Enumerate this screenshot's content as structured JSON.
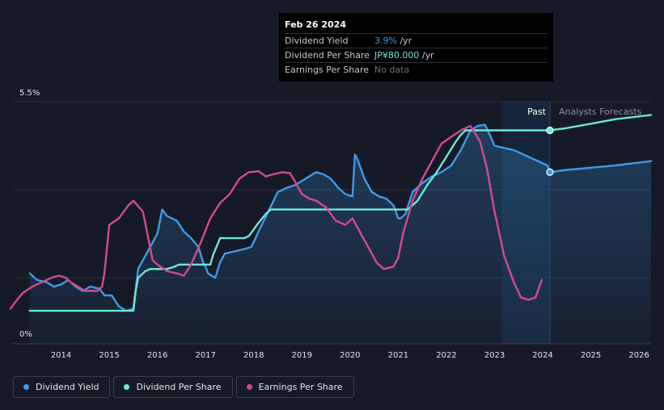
{
  "tooltip": {
    "date": "Feb 26 2024",
    "rows": [
      {
        "label": "Dividend Yield",
        "value": "3.9%",
        "unit": " /yr"
      },
      {
        "label": "Dividend Per Share",
        "value": "JP¥80.000",
        "unit": " /yr"
      },
      {
        "label": "Earnings Per Share",
        "value": "No data",
        "unit": ""
      }
    ]
  },
  "regions": {
    "past_label": "Past",
    "forecast_label": "Analysts Forecasts"
  },
  "legend": [
    {
      "label": "Dividend Yield",
      "color": "#3d9be9"
    },
    {
      "label": "Dividend Per Share",
      "color": "#6ee7d8"
    },
    {
      "label": "Earnings Per Share",
      "color": "#d64a8c"
    }
  ],
  "chart_data": {
    "type": "line",
    "y_axis_labels": [
      "5.5%",
      "0%"
    ],
    "x_ticks": [
      "2014",
      "2015",
      "2016",
      "2017",
      "2018",
      "2019",
      "2020",
      "2021",
      "2022",
      "2023",
      "2024",
      "2025",
      "2026"
    ],
    "xlim": [
      2013.0,
      2026.25
    ],
    "ylim": [
      0,
      5.5
    ],
    "grid": true,
    "past_end": 2024.15,
    "highlight_start": 2023.15,
    "series": [
      {
        "name": "Dividend Yield",
        "color": "#3d9be9",
        "area": true,
        "x": [
          2013.35,
          2013.5,
          2013.7,
          2013.85,
          2014.0,
          2014.15,
          2014.3,
          2014.45,
          2014.6,
          2014.8,
          2014.9,
          2015.05,
          2015.2,
          2015.35,
          2015.5,
          2015.6,
          2015.8,
          2016.0,
          2016.1,
          2016.2,
          2016.4,
          2016.55,
          2016.7,
          2016.85,
          2016.95,
          2017.0,
          2017.05,
          2017.2,
          2017.3,
          2017.4,
          2017.6,
          2017.8,
          2017.95,
          2018.1,
          2018.3,
          2018.5,
          2018.7,
          2018.85,
          2019.0,
          2019.15,
          2019.3,
          2019.45,
          2019.6,
          2019.75,
          2019.9,
          2020.05,
          2020.1,
          2020.15,
          2020.3,
          2020.45,
          2020.6,
          2020.75,
          2020.9,
          2021.0,
          2021.05,
          2021.15,
          2021.3,
          2021.5,
          2021.7,
          2021.9,
          2022.1,
          2022.3,
          2022.5,
          2022.65,
          2022.8,
          2022.9,
          2023.0,
          2023.2,
          2023.4,
          2023.6,
          2023.8,
          2024.0,
          2024.1,
          2024.15,
          2024.5,
          2025.0,
          2025.5,
          2026.25
        ],
        "y": [
          1.6,
          1.45,
          1.4,
          1.3,
          1.35,
          1.45,
          1.3,
          1.2,
          1.3,
          1.25,
          1.1,
          1.1,
          0.85,
          0.75,
          0.8,
          1.7,
          2.1,
          2.5,
          3.05,
          2.9,
          2.8,
          2.55,
          2.4,
          2.2,
          1.85,
          1.75,
          1.6,
          1.5,
          1.85,
          2.05,
          2.1,
          2.15,
          2.2,
          2.55,
          3.0,
          3.45,
          3.55,
          3.6,
          3.7,
          3.8,
          3.9,
          3.85,
          3.75,
          3.55,
          3.4,
          3.35,
          4.3,
          4.2,
          3.75,
          3.45,
          3.35,
          3.3,
          3.15,
          2.85,
          2.85,
          2.95,
          3.45,
          3.65,
          3.8,
          3.9,
          4.05,
          4.4,
          4.85,
          4.95,
          4.98,
          4.75,
          4.5,
          4.45,
          4.4,
          4.3,
          4.2,
          4.1,
          4.05,
          3.9,
          3.95,
          4.0,
          4.05,
          4.15
        ]
      },
      {
        "name": "Dividend Per Share",
        "color": "#6ee7d8",
        "area": false,
        "x": [
          2013.35,
          2015.5,
          2015.55,
          2015.6,
          2015.75,
          2015.85,
          2016.0,
          2016.2,
          2016.35,
          2016.45,
          2016.55,
          2016.8,
          2017.1,
          2017.15,
          2017.3,
          2017.5,
          2017.8,
          2017.9,
          2018.1,
          2018.25,
          2018.35,
          2019.0,
          2020.0,
          2020.5,
          2021.0,
          2021.2,
          2021.25,
          2021.4,
          2021.6,
          2021.8,
          2022.0,
          2022.2,
          2022.3,
          2022.4,
          2023.0,
          2024.15,
          2024.5,
          2025.0,
          2025.5,
          2026.25
        ],
        "y": [
          0.75,
          0.75,
          1.2,
          1.5,
          1.65,
          1.7,
          1.7,
          1.7,
          1.75,
          1.8,
          1.8,
          1.8,
          1.8,
          2.0,
          2.4,
          2.4,
          2.4,
          2.45,
          2.75,
          2.95,
          3.05,
          3.05,
          3.05,
          3.05,
          3.05,
          3.05,
          3.1,
          3.25,
          3.6,
          3.9,
          4.25,
          4.6,
          4.75,
          4.85,
          4.85,
          4.85,
          4.9,
          5.0,
          5.1,
          5.2
        ]
      },
      {
        "name": "Earnings Per Share",
        "color": "#d64a8c",
        "area": false,
        "x": [
          2012.95,
          2013.05,
          2013.2,
          2013.4,
          2013.6,
          2013.8,
          2013.95,
          2014.1,
          2014.2,
          2014.35,
          2014.5,
          2014.75,
          2014.85,
          2014.9,
          2015.0,
          2015.2,
          2015.4,
          2015.5,
          2015.7,
          2015.9,
          2016.0,
          2016.2,
          2016.4,
          2016.55,
          2016.7,
          2016.9,
          2017.1,
          2017.3,
          2017.5,
          2017.7,
          2017.9,
          2018.1,
          2018.25,
          2018.4,
          2018.6,
          2018.75,
          2018.85,
          2019.0,
          2019.15,
          2019.3,
          2019.5,
          2019.7,
          2019.9,
          2020.05,
          2020.3,
          2020.55,
          2020.7,
          2020.9,
          2021.0,
          2021.1,
          2021.3,
          2021.5,
          2021.7,
          2021.9,
          2022.1,
          2022.3,
          2022.5,
          2022.7,
          2022.85,
          2023.0,
          2023.2,
          2023.4,
          2023.55,
          2023.7,
          2023.85,
          2023.98
        ],
        "y": [
          0.8,
          0.95,
          1.15,
          1.3,
          1.4,
          1.5,
          1.55,
          1.5,
          1.4,
          1.3,
          1.2,
          1.2,
          1.3,
          1.6,
          2.7,
          2.85,
          3.15,
          3.25,
          3.0,
          1.9,
          1.8,
          1.65,
          1.6,
          1.55,
          1.8,
          2.3,
          2.85,
          3.2,
          3.4,
          3.75,
          3.9,
          3.92,
          3.8,
          3.85,
          3.9,
          3.88,
          3.7,
          3.4,
          3.3,
          3.25,
          3.1,
          2.8,
          2.7,
          2.85,
          2.35,
          1.85,
          1.7,
          1.75,
          1.95,
          2.5,
          3.25,
          3.75,
          4.15,
          4.55,
          4.7,
          4.85,
          4.95,
          4.6,
          3.95,
          3.0,
          2.0,
          1.4,
          1.05,
          1.0,
          1.05,
          1.45
        ]
      }
    ]
  }
}
